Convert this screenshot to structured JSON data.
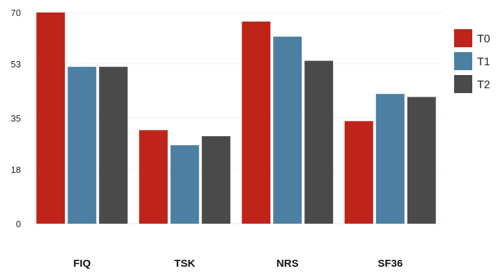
{
  "chart_data": {
    "type": "bar",
    "categories": [
      "FIQ",
      "TSK",
      "NRS",
      "SF36"
    ],
    "series": [
      {
        "name": "T0",
        "color": "#be2419",
        "values": [
          70,
          31,
          67,
          34
        ]
      },
      {
        "name": "T1",
        "color": "#4b80a3",
        "values": [
          52,
          26,
          62,
          43
        ]
      },
      {
        "name": "T2",
        "color": "#4a4a4a",
        "values": [
          52,
          29,
          54,
          42
        ]
      }
    ],
    "yticks": [
      0,
      18,
      35,
      53,
      70
    ],
    "ylim": [
      0,
      70
    ],
    "grid": true,
    "legend_position": "right",
    "title": "",
    "xlabel": "",
    "ylabel": ""
  }
}
